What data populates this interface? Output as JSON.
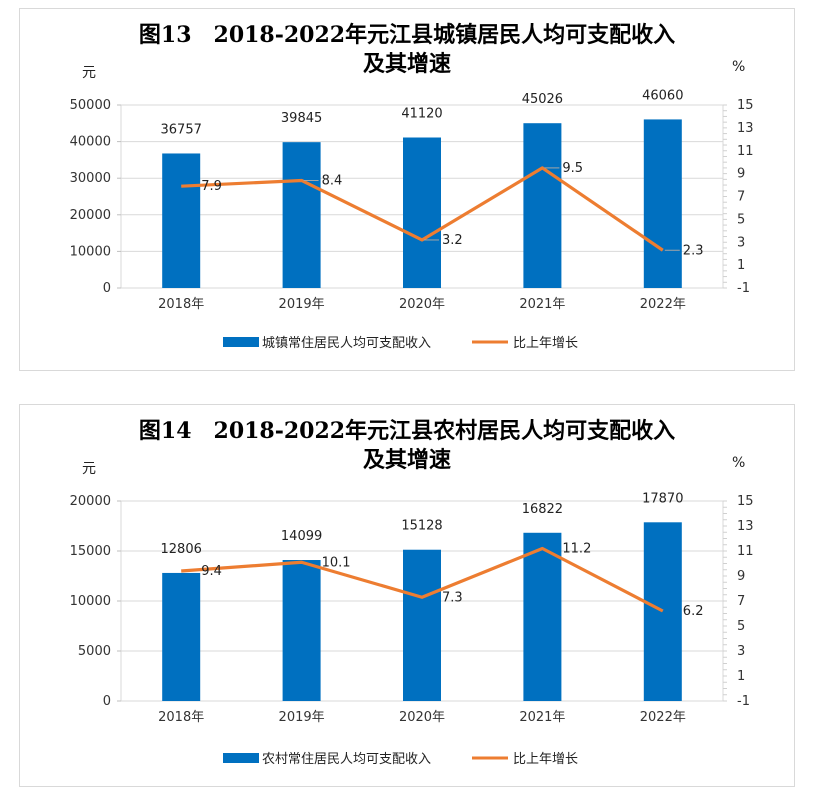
{
  "colors": {
    "bar": "#0070C0",
    "line": "#ED7D31",
    "grid": "#d9d9d9",
    "leader": "#a6a6a6"
  },
  "chart_data": [
    {
      "type": "bar",
      "title_line1": "图13　2018-2022年元江县城镇居民人均可支配收入",
      "title_line2": "及其增速",
      "left_unit": "元",
      "right_unit": "%",
      "categories": [
        "2018年",
        "2019年",
        "2020年",
        "2021年",
        "2022年"
      ],
      "series": [
        {
          "name": "城镇常住居民人均可支配收入",
          "type": "bar",
          "axis": "left",
          "values": [
            36757,
            39845,
            41120,
            45026,
            46060
          ]
        },
        {
          "name": "比上年增长",
          "type": "line",
          "axis": "right",
          "values": [
            7.9,
            8.4,
            3.2,
            9.5,
            2.3
          ]
        }
      ],
      "left_axis": {
        "min": 0,
        "max": 50000,
        "ticks": [
          0,
          10000,
          20000,
          30000,
          40000,
          50000
        ]
      },
      "right_axis": {
        "min": -1,
        "max": 15,
        "ticks": [
          -1,
          1,
          3,
          5,
          7,
          9,
          11,
          13,
          15
        ]
      },
      "legend": [
        "城镇常住居民人均可支配收入",
        "比上年增长"
      ]
    },
    {
      "type": "bar",
      "title_line1": "图14　2018-2022年元江县农村居民人均可支配收入",
      "title_line2": "及其增速",
      "left_unit": "元",
      "right_unit": "%",
      "categories": [
        "2018年",
        "2019年",
        "2020年",
        "2021年",
        "2022年"
      ],
      "series": [
        {
          "name": "农村常住居民人均可支配收入",
          "type": "bar",
          "axis": "left",
          "values": [
            12806,
            14099,
            15128,
            16822,
            17870
          ]
        },
        {
          "name": "比上年增长",
          "type": "line",
          "axis": "right",
          "values": [
            9.4,
            10.1,
            7.3,
            11.2,
            6.2
          ]
        }
      ],
      "left_axis": {
        "min": 0,
        "max": 20000,
        "ticks": [
          0,
          5000,
          10000,
          15000,
          20000
        ]
      },
      "right_axis": {
        "min": -1,
        "max": 15,
        "ticks": [
          -1,
          1,
          3,
          5,
          7,
          9,
          11,
          13,
          15
        ]
      },
      "legend": [
        "农村常住居民人均可支配收入",
        "比上年增长"
      ]
    }
  ]
}
